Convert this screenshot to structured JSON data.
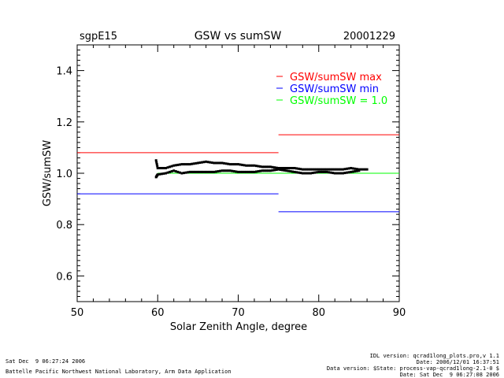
{
  "chart_data": {
    "type": "scatter",
    "title": "GSW vs sumSW",
    "site": "sgpE15",
    "date": "20001229",
    "xlabel": "Solar Zenith Angle, degree",
    "ylabel": "GSW/sumSW",
    "xlim": [
      50,
      90
    ],
    "ylim": [
      0.5,
      1.5
    ],
    "xticks": [
      "50",
      "60",
      "70",
      "80",
      "90"
    ],
    "yticks": [
      "0.6",
      "0.8",
      "1.0",
      "1.2",
      "1.4"
    ],
    "ytick_values": [
      0.6,
      0.8,
      1.0,
      1.2,
      1.4
    ],
    "xtick_values": [
      50,
      60,
      70,
      80,
      90
    ],
    "legend": [
      {
        "label": "GSW/sumSW max",
        "color": "#ff0000"
      },
      {
        "label": "GSW/sumSW min",
        "color": "#0000ff"
      },
      {
        "label": "GSW/sumSW = 1.0",
        "color": "#00ff00"
      }
    ],
    "reference_lines": [
      {
        "color": "#ff0000",
        "segments": [
          [
            50,
            75,
            1.08
          ],
          [
            75,
            90,
            1.15
          ]
        ]
      },
      {
        "color": "#0000ff",
        "segments": [
          [
            50,
            75,
            0.92
          ],
          [
            75,
            90,
            0.85
          ]
        ]
      },
      {
        "color": "#00ff00",
        "segments": [
          [
            60,
            90,
            1.0
          ]
        ]
      }
    ],
    "series": [
      {
        "marker_color": "#000000",
        "upper": [
          [
            59.8,
            1.05
          ],
          [
            60.0,
            1.02
          ],
          [
            61,
            1.02
          ],
          [
            62,
            1.03
          ],
          [
            63,
            1.035
          ],
          [
            64,
            1.035
          ],
          [
            65,
            1.04
          ],
          [
            66,
            1.045
          ],
          [
            67,
            1.04
          ],
          [
            68,
            1.04
          ],
          [
            69,
            1.035
          ],
          [
            70,
            1.035
          ],
          [
            71,
            1.03
          ],
          [
            72,
            1.03
          ],
          [
            73,
            1.025
          ],
          [
            74,
            1.025
          ],
          [
            75,
            1.02
          ],
          [
            76,
            1.02
          ],
          [
            77,
            1.02
          ],
          [
            78,
            1.015
          ],
          [
            79,
            1.015
          ],
          [
            80,
            1.015
          ],
          [
            81,
            1.015
          ],
          [
            82,
            1.015
          ],
          [
            83,
            1.015
          ],
          [
            84,
            1.02
          ],
          [
            85,
            1.015
          ],
          [
            86,
            1.015
          ]
        ],
        "lower": [
          [
            59.8,
            0.985
          ],
          [
            60.0,
            0.995
          ],
          [
            61,
            1.0
          ],
          [
            62,
            1.01
          ],
          [
            63,
            1.0
          ],
          [
            64,
            1.005
          ],
          [
            65,
            1.005
          ],
          [
            66,
            1.005
          ],
          [
            67,
            1.005
          ],
          [
            68,
            1.01
          ],
          [
            69,
            1.01
          ],
          [
            70,
            1.005
          ],
          [
            71,
            1.005
          ],
          [
            72,
            1.005
          ],
          [
            73,
            1.01
          ],
          [
            74,
            1.01
          ],
          [
            75,
            1.015
          ],
          [
            76,
            1.01
          ],
          [
            77,
            1.005
          ],
          [
            78,
            1.0
          ],
          [
            79,
            1.0
          ],
          [
            80,
            1.005
          ],
          [
            81,
            1.005
          ],
          [
            82,
            1.0
          ],
          [
            83,
            1.0
          ],
          [
            84,
            1.005
          ],
          [
            85,
            1.01
          ]
        ]
      }
    ]
  },
  "footer": {
    "left_time": "Sat Dec  9 06:27:24 2006",
    "left_org": "Battelle Pacific Northwest National Laboratory, Arm Data Application",
    "right_lines": [
      "IDL version: qcrad1long_plots.pro,v 1.1",
      "Date: 2006/12/01 16:37:51",
      "Data version: $State: process-vap-qcrad1long-2.1-0 $",
      "Date: Sat Dec  9 06:27:08 2006"
    ]
  }
}
